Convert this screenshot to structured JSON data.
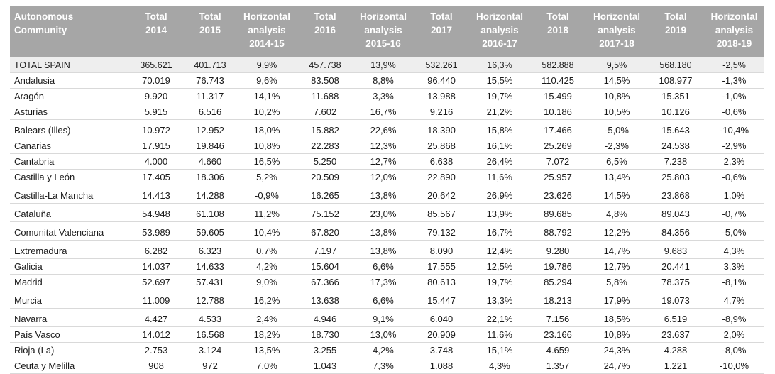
{
  "table": {
    "headers": [
      [
        "Autonomous",
        "Community"
      ],
      [
        "Total",
        "2014"
      ],
      [
        "Total",
        "2015"
      ],
      [
        "Horizontal",
        "analysis",
        "2014-15"
      ],
      [
        "Total",
        "2016"
      ],
      [
        "Horizontal",
        "analysis",
        "2015-16"
      ],
      [
        "Total",
        "2017"
      ],
      [
        "Horizontal",
        "analysis",
        "2016-17"
      ],
      [
        "Total",
        "2018"
      ],
      [
        "Horizontal",
        "analysis",
        "2017-18"
      ],
      [
        "Total",
        "2019"
      ],
      [
        "Horizontal",
        "analysis",
        "2018-19"
      ]
    ],
    "rows": [
      [
        "TOTAL SPAIN",
        "365.621",
        "401.713",
        "9,9%",
        "457.738",
        "13,9%",
        "532.261",
        "16,3%",
        "582.888",
        "9,5%",
        "568.180",
        "-2,5%"
      ],
      [
        "Andalusia",
        "70.019",
        "76.743",
        "9,6%",
        "83.508",
        "8,8%",
        "96.440",
        "15,5%",
        "110.425",
        "14,5%",
        "108.977",
        "-1,3%"
      ],
      [
        "Aragón",
        "9.920",
        "11.317",
        "14,1%",
        "11.688",
        "3,3%",
        "13.988",
        "19,7%",
        "15.499",
        "10,8%",
        "15.351",
        "-1,0%"
      ],
      [
        "Asturias",
        "5.915",
        "6.516",
        "10,2%",
        "7.602",
        "16,7%",
        "9.216",
        "21,2%",
        "10.186",
        "10,5%",
        "10.126",
        "-0,6%"
      ],
      [
        "Balears (Illes)",
        "10.972",
        "12.952",
        "18,0%",
        "15.882",
        "22,6%",
        "18.390",
        "15,8%",
        "17.466",
        "-5,0%",
        "15.643",
        "-10,4%"
      ],
      [
        "Canarias",
        "17.915",
        "19.846",
        "10,8%",
        "22.283",
        "12,3%",
        "25.868",
        "16,1%",
        "25.269",
        "-2,3%",
        "24.538",
        "-2,9%"
      ],
      [
        "Cantabria",
        "4.000",
        "4.660",
        "16,5%",
        "5.250",
        "12,7%",
        "6.638",
        "26,4%",
        "7.072",
        "6,5%",
        "7.238",
        "2,3%"
      ],
      [
        "Castilla y León",
        "17.405",
        "18.306",
        "5,2%",
        "20.509",
        "12,0%",
        "22.890",
        "11,6%",
        "25.957",
        "13,4%",
        "25.803",
        "-0,6%"
      ],
      [
        "Castilla-La Mancha",
        "14.413",
        "14.288",
        "-0,9%",
        "16.265",
        "13,8%",
        "20.642",
        "26,9%",
        "23.626",
        "14,5%",
        "23.868",
        "1,0%"
      ],
      [
        "Cataluña",
        "54.948",
        "61.108",
        "11,2%",
        "75.152",
        "23,0%",
        "85.567",
        "13,9%",
        "89.685",
        "4,8%",
        "89.043",
        "-0,7%"
      ],
      [
        "Comunitat Valenciana",
        "53.989",
        "59.605",
        "10,4%",
        "67.820",
        "13,8%",
        "79.132",
        "16,7%",
        "88.792",
        "12,2%",
        "84.356",
        "-5,0%"
      ],
      [
        "Extremadura",
        "6.282",
        "6.323",
        "0,7%",
        "7.197",
        "13,8%",
        "8.090",
        "12,4%",
        "9.280",
        "14,7%",
        "9.683",
        "4,3%"
      ],
      [
        "Galicia",
        "14.037",
        "14.633",
        "4,2%",
        "15.604",
        "6,6%",
        "17.555",
        "12,5%",
        "19.786",
        "12,7%",
        "20.441",
        "3,3%"
      ],
      [
        "Madrid",
        "52.697",
        "57.431",
        "9,0%",
        "67.366",
        "17,3%",
        "80.613",
        "19,7%",
        "85.294",
        "5,8%",
        "78.375",
        "-8,1%"
      ],
      [
        "Murcia",
        "11.009",
        "12.788",
        "16,2%",
        "13.638",
        "6,6%",
        "15.447",
        "13,3%",
        "18.213",
        "17,9%",
        "19.073",
        "4,7%"
      ],
      [
        "Navarra",
        "4.427",
        "4.533",
        "2,4%",
        "4.946",
        "9,1%",
        "6.040",
        "22,1%",
        "7.156",
        "18,5%",
        "6.519",
        "-8,9%"
      ],
      [
        "País Vasco",
        "14.012",
        "16.568",
        "18,2%",
        "18.730",
        "13,0%",
        "20.909",
        "11,6%",
        "23.166",
        "10,8%",
        "23.637",
        "2,0%"
      ],
      [
        "Rioja (La)",
        "2.753",
        "3.124",
        "13,5%",
        "3.255",
        "4,2%",
        "3.748",
        "15,1%",
        "4.659",
        "24,3%",
        "4.288",
        "-8,0%"
      ],
      [
        "Ceuta y Melilla",
        "908",
        "972",
        "7,0%",
        "1.043",
        "7,3%",
        "1.088",
        "4,3%",
        "1.357",
        "24,7%",
        "1.221",
        "-10,0%"
      ]
    ]
  }
}
